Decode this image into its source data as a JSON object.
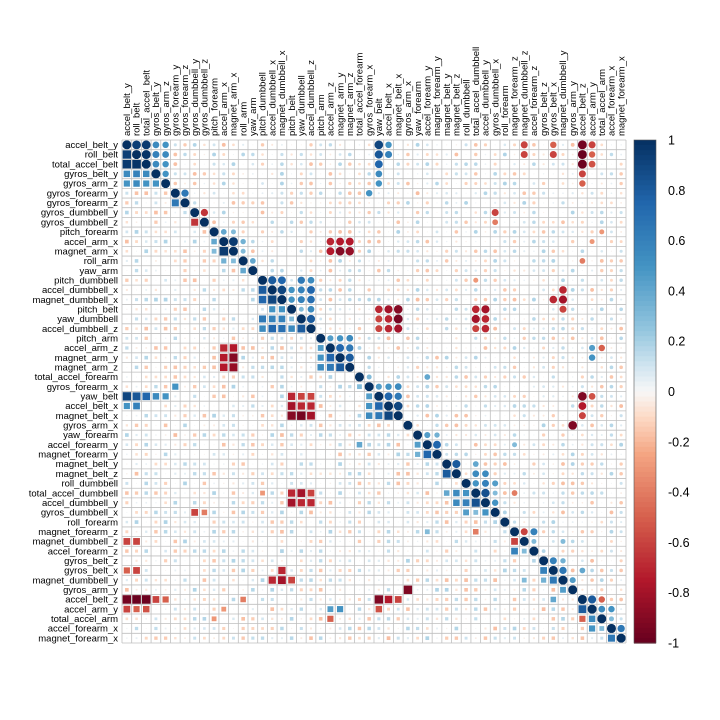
{
  "chart_data": {
    "type": "heatmap",
    "variables": [
      "accel_belt_y",
      "roll_belt",
      "total_accel_belt",
      "gyros_belt_y",
      "gyros_arm_z",
      "gyros_forearm_y",
      "gyros_forearm_z",
      "gyros_dumbbell_y",
      "gyros_dumbbell_z",
      "pitch_forearm",
      "accel_arm_x",
      "magnet_arm_x",
      "roll_arm",
      "yaw_arm",
      "pitch_dumbbell",
      "accel_dumbbell_x",
      "magnet_dumbbell_x",
      "pitch_belt",
      "yaw_dumbbell",
      "accel_dumbbell_z",
      "pitch_arm",
      "accel_arm_z",
      "magnet_arm_y",
      "magnet_arm_z",
      "total_accel_forearm",
      "gyros_forearm_x",
      "yaw_belt",
      "accel_belt_x",
      "magnet_belt_x",
      "gyros_arm_x",
      "yaw_forearm",
      "accel_forearm_y",
      "magnet_forearm_y",
      "magnet_belt_y",
      "magnet_belt_z",
      "roll_dumbbell",
      "total_accel_dumbbell",
      "accel_dumbbell_y",
      "gyros_dumbbell_x",
      "roll_forearm",
      "magnet_forearm_z",
      "magnet_dumbbell_z",
      "accel_forearm_z",
      "gyros_belt_z",
      "gyros_belt_x",
      "magnet_dumbbell_y",
      "gyros_arm_y",
      "accel_belt_z",
      "accel_arm_y",
      "total_accel_arm",
      "accel_forearm_x",
      "magnet_forearm_x"
    ],
    "strong_correlations": [
      [
        0,
        1,
        0.93
      ],
      [
        0,
        2,
        0.95
      ],
      [
        0,
        3,
        0.55
      ],
      [
        0,
        4,
        0.5
      ],
      [
        0,
        26,
        0.9
      ],
      [
        0,
        27,
        0.5
      ],
      [
        0,
        47,
        -0.96
      ],
      [
        0,
        48,
        -0.6
      ],
      [
        0,
        44,
        -0.5
      ],
      [
        0,
        41,
        -0.6
      ],
      [
        1,
        2,
        0.98
      ],
      [
        1,
        3,
        0.6
      ],
      [
        1,
        4,
        0.55
      ],
      [
        1,
        26,
        0.82
      ],
      [
        1,
        27,
        0.6
      ],
      [
        1,
        47,
        -0.99
      ],
      [
        1,
        48,
        -0.5
      ],
      [
        1,
        44,
        -0.6
      ],
      [
        1,
        41,
        -0.6
      ],
      [
        2,
        3,
        0.55
      ],
      [
        2,
        4,
        0.5
      ],
      [
        2,
        26,
        0.75
      ],
      [
        2,
        47,
        -0.98
      ],
      [
        2,
        48,
        -0.55
      ],
      [
        3,
        4,
        0.5
      ],
      [
        3,
        26,
        0.55
      ],
      [
        3,
        47,
        -0.6
      ],
      [
        4,
        26,
        0.5
      ],
      [
        4,
        47,
        -0.5
      ],
      [
        5,
        6,
        0.65
      ],
      [
        5,
        25,
        0.5
      ],
      [
        7,
        8,
        -0.65
      ],
      [
        7,
        38,
        -0.6
      ],
      [
        8,
        38,
        -0.4
      ],
      [
        9,
        10,
        0.4
      ],
      [
        9,
        11,
        0.3
      ],
      [
        9,
        49,
        -0.3
      ],
      [
        10,
        11,
        0.95
      ],
      [
        10,
        21,
        -0.7
      ],
      [
        10,
        22,
        -0.75
      ],
      [
        10,
        23,
        -0.75
      ],
      [
        10,
        12,
        0.35
      ],
      [
        10,
        48,
        -0.3
      ],
      [
        11,
        21,
        -0.75
      ],
      [
        11,
        22,
        -0.9
      ],
      [
        11,
        23,
        -0.85
      ],
      [
        11,
        12,
        0.3
      ],
      [
        12,
        13,
        0.4
      ],
      [
        12,
        47,
        -0.4
      ],
      [
        14,
        15,
        0.8
      ],
      [
        14,
        16,
        0.75
      ],
      [
        14,
        18,
        0.65
      ],
      [
        14,
        19,
        0.55
      ],
      [
        14,
        36,
        -0.3
      ],
      [
        15,
        16,
        0.9
      ],
      [
        15,
        18,
        0.6
      ],
      [
        15,
        19,
        0.75
      ],
      [
        15,
        17,
        0.5
      ],
      [
        15,
        45,
        -0.7
      ],
      [
        16,
        18,
        0.6
      ],
      [
        16,
        19,
        0.7
      ],
      [
        16,
        17,
        0.5
      ],
      [
        16,
        45,
        -0.8
      ],
      [
        16,
        44,
        -0.7
      ],
      [
        17,
        18,
        0.3
      ],
      [
        17,
        19,
        0.55
      ],
      [
        17,
        26,
        -0.7
      ],
      [
        17,
        27,
        -0.8
      ],
      [
        17,
        28,
        -0.9
      ],
      [
        17,
        36,
        -0.7
      ],
      [
        17,
        37,
        -0.8
      ],
      [
        17,
        45,
        -0.6
      ],
      [
        18,
        19,
        0.8
      ],
      [
        18,
        26,
        -0.6
      ],
      [
        18,
        27,
        -0.7
      ],
      [
        18,
        28,
        -0.95
      ],
      [
        18,
        36,
        -0.8
      ],
      [
        18,
        37,
        -0.7
      ],
      [
        19,
        26,
        -0.6
      ],
      [
        19,
        27,
        -0.7
      ],
      [
        19,
        28,
        -0.8
      ],
      [
        19,
        36,
        -0.6
      ],
      [
        19,
        37,
        -0.7
      ],
      [
        20,
        21,
        0.45
      ],
      [
        20,
        22,
        0.5
      ],
      [
        20,
        23,
        0.55
      ],
      [
        21,
        22,
        0.75
      ],
      [
        21,
        23,
        0.65
      ],
      [
        21,
        48,
        0.45
      ],
      [
        21,
        49,
        -0.5
      ],
      [
        22,
        23,
        0.8
      ],
      [
        22,
        48,
        0.5
      ],
      [
        24,
        25,
        0.3
      ],
      [
        24,
        31,
        0.4
      ],
      [
        25,
        26,
        0.45
      ],
      [
        25,
        27,
        0.5
      ],
      [
        25,
        28,
        0.55
      ],
      [
        26,
        27,
        0.75
      ],
      [
        26,
        28,
        0.65
      ],
      [
        26,
        47,
        -0.92
      ],
      [
        26,
        48,
        -0.55
      ],
      [
        27,
        28,
        0.9
      ],
      [
        27,
        47,
        -0.75
      ],
      [
        28,
        47,
        -0.6
      ],
      [
        29,
        46,
        -0.92
      ],
      [
        30,
        31,
        0.45
      ],
      [
        30,
        32,
        0.35
      ],
      [
        31,
        32,
        0.75
      ],
      [
        31,
        40,
        0.3
      ],
      [
        33,
        34,
        0.8
      ],
      [
        33,
        36,
        0.4
      ],
      [
        34,
        36,
        0.55
      ],
      [
        34,
        37,
        0.55
      ],
      [
        35,
        36,
        0.5
      ],
      [
        35,
        37,
        0.6
      ],
      [
        35,
        38,
        0.45
      ],
      [
        36,
        37,
        0.85
      ],
      [
        36,
        38,
        0.3
      ],
      [
        36,
        40,
        -0.4
      ],
      [
        37,
        38,
        0.5
      ],
      [
        40,
        41,
        -0.6
      ],
      [
        40,
        42,
        0.6
      ],
      [
        41,
        42,
        0.3
      ],
      [
        41,
        45,
        0.3
      ],
      [
        43,
        44,
        0.6
      ],
      [
        43,
        45,
        0.35
      ],
      [
        44,
        45,
        0.65
      ],
      [
        44,
        47,
        0.4
      ],
      [
        45,
        46,
        0.45
      ],
      [
        47,
        48,
        0.8
      ],
      [
        47,
        49,
        -0.5
      ],
      [
        48,
        49,
        0.55
      ],
      [
        48,
        50,
        0.5
      ],
      [
        49,
        50,
        0.3
      ],
      [
        50,
        51,
        0.65
      ]
    ],
    "legend_ticks": [
      "1",
      "0.8",
      "0.6",
      "0.4",
      "0.2",
      "0",
      "-0.2",
      "-0.4",
      "-0.6",
      "-0.8",
      "-1"
    ],
    "legend_range": [
      -1,
      1
    ],
    "color_high": "#053061",
    "color_mid": "#F7F7F7",
    "color_low": "#67001F",
    "lower_triangle_glyph": "square",
    "upper_triangle_glyph": "circle",
    "grid": true,
    "legend_placement": "right"
  }
}
